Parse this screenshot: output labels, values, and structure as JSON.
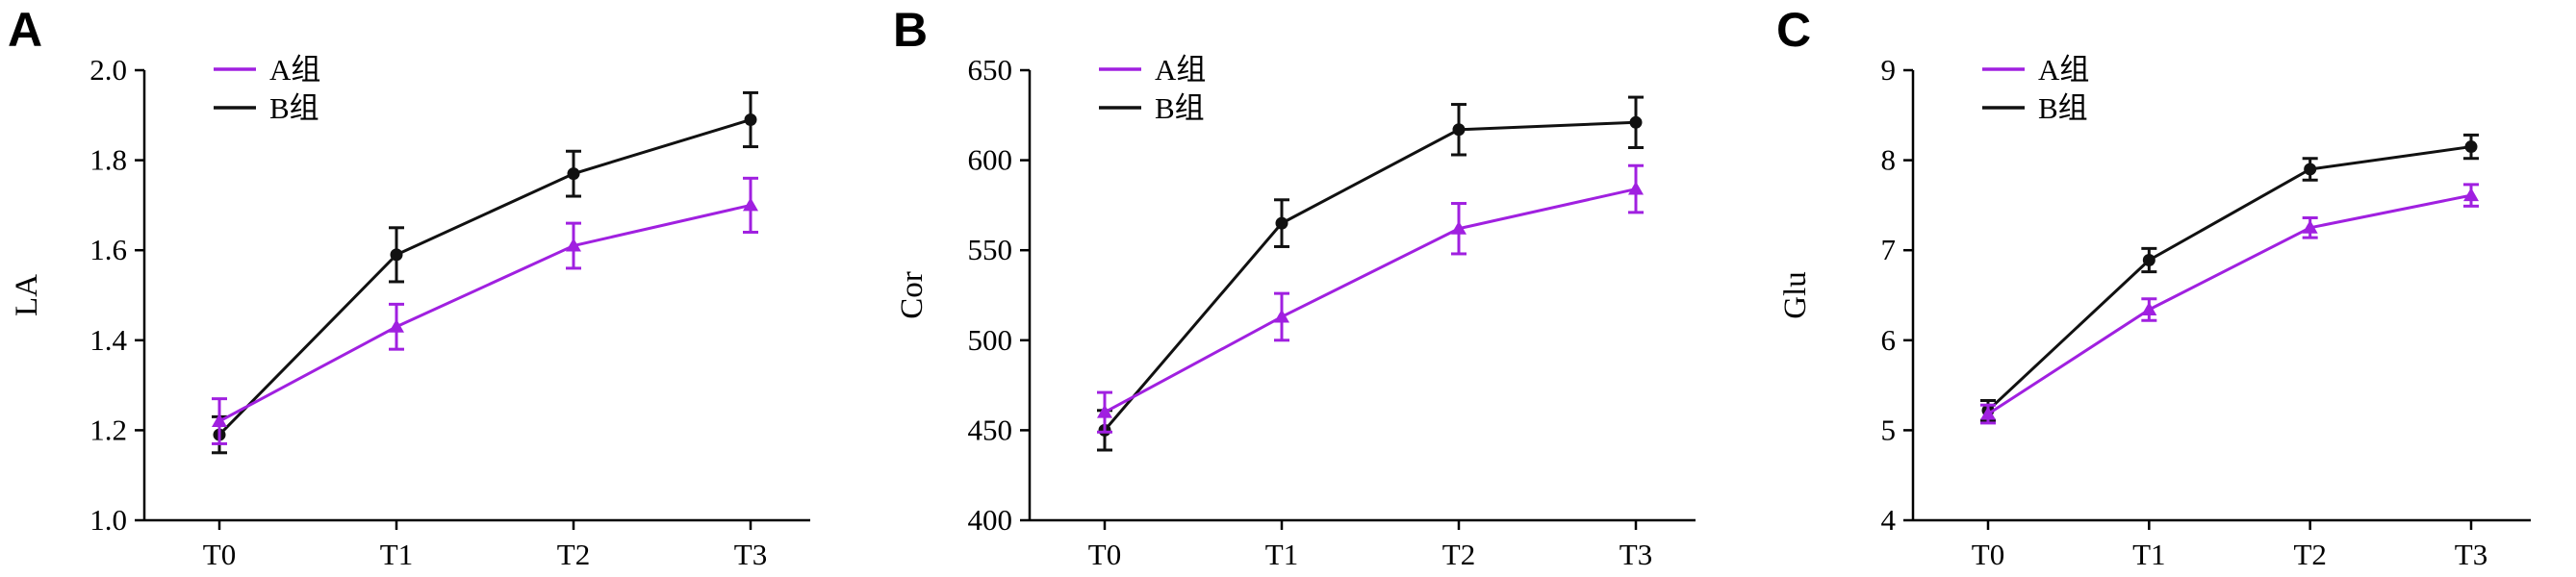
{
  "colors": {
    "A": "#a020e0",
    "B": "#111111",
    "axis": "#000000"
  },
  "chart_data": [
    {
      "panel": "A",
      "type": "line",
      "ylabel": "LA",
      "xlabel": "",
      "categories": [
        "T0",
        "T1",
        "T2",
        "T3"
      ],
      "ylim": [
        1.0,
        2.0
      ],
      "yticks": [
        "1.0",
        "1.2",
        "1.4",
        "1.6",
        "1.8",
        "2.0"
      ],
      "legend": "top-left",
      "series": [
        {
          "name": "A组",
          "marker": "triangle",
          "values": [
            1.22,
            1.43,
            1.61,
            1.7
          ],
          "errors": [
            0.05,
            0.05,
            0.05,
            0.06
          ]
        },
        {
          "name": "B组",
          "marker": "circle",
          "values": [
            1.19,
            1.59,
            1.77,
            1.89
          ],
          "errors": [
            0.04,
            0.06,
            0.05,
            0.06
          ]
        }
      ]
    },
    {
      "panel": "B",
      "type": "line",
      "ylabel": "Cor",
      "xlabel": "",
      "categories": [
        "T0",
        "T1",
        "T2",
        "T3"
      ],
      "ylim": [
        400,
        650
      ],
      "yticks": [
        "400",
        "450",
        "500",
        "550",
        "600",
        "650"
      ],
      "legend": "top-left",
      "series": [
        {
          "name": "A组",
          "marker": "triangle",
          "values": [
            460,
            513,
            562,
            584
          ],
          "errors": [
            11,
            13,
            14,
            13
          ]
        },
        {
          "name": "B组",
          "marker": "circle",
          "values": [
            450,
            565,
            617,
            621
          ],
          "errors": [
            11,
            13,
            14,
            14
          ]
        }
      ]
    },
    {
      "panel": "C",
      "type": "line",
      "ylabel": "Glu",
      "xlabel": "",
      "categories": [
        "T0",
        "T1",
        "T2",
        "T3"
      ],
      "ylim": [
        4,
        9
      ],
      "yticks": [
        "4",
        "5",
        "6",
        "7",
        "8",
        "9"
      ],
      "legend": "top-left",
      "series": [
        {
          "name": "A组",
          "marker": "triangle",
          "values": [
            5.18,
            6.34,
            7.25,
            7.61
          ],
          "errors": [
            0.1,
            0.12,
            0.11,
            0.12
          ]
        },
        {
          "name": "B组",
          "marker": "circle",
          "values": [
            5.22,
            6.89,
            7.9,
            8.15
          ],
          "errors": [
            0.11,
            0.13,
            0.12,
            0.13
          ]
        }
      ]
    }
  ]
}
